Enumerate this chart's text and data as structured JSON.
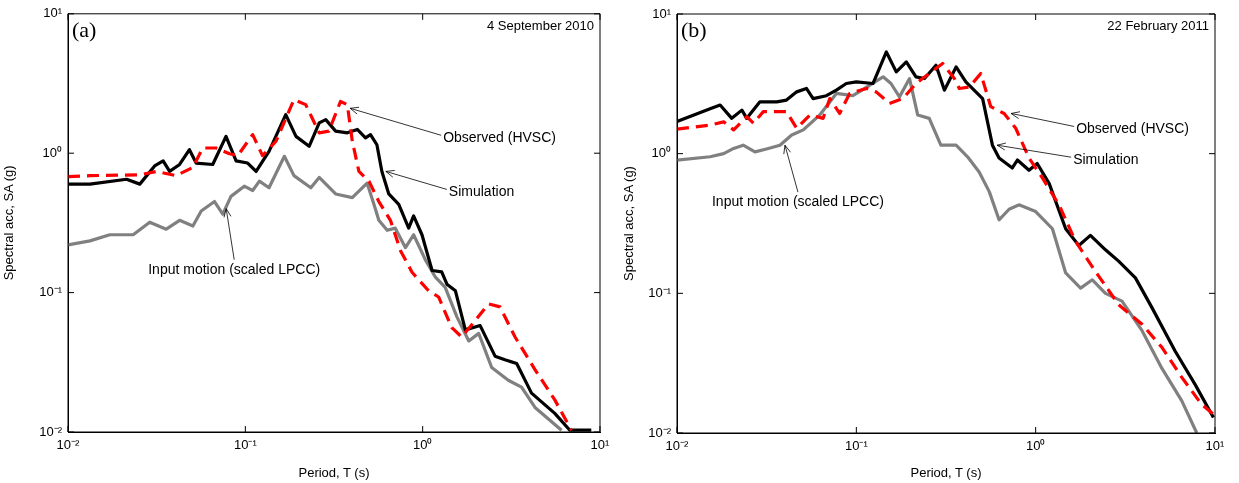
{
  "chart_data": [
    {
      "type": "line",
      "xlabel": "Period, T (s)",
      "ylabel": "Spectral acc, SA (g)",
      "log": "xy",
      "grid": false,
      "legend": false,
      "marker": "none",
      "xlim": [
        0.01,
        10
      ],
      "ylim": [
        0.01,
        10
      ],
      "xticks": [
        {
          "value": 0.01,
          "label": "10⁻²"
        },
        {
          "value": 0.1,
          "label": "10⁻¹"
        },
        {
          "value": 1,
          "label": "10⁰"
        },
        {
          "value": 10,
          "label": "10¹"
        }
      ],
      "yticks": [
        {
          "value": 0.01,
          "label": "10⁻²"
        },
        {
          "value": 0.1,
          "label": "10⁻¹"
        },
        {
          "value": 1,
          "label": "10⁰"
        },
        {
          "value": 10,
          "label": "10¹"
        }
      ],
      "annotations": [
        "(a)",
        "4 September 2010",
        {
          "text": "Observed (HVSC)",
          "x": 0.39,
          "y": 2.1
        },
        {
          "text": "Simulation",
          "x": 0.62,
          "y": 0.74
        },
        {
          "text": "Input motion (scaled LPCC)",
          "x": 0.078,
          "y": 0.4
        }
      ],
      "series": [
        {
          "color": "#ff0000",
          "line_style": "dashed",
          "x": [
            0.01,
            0.0133,
            0.0254,
            0.0315,
            0.0407,
            0.0506,
            0.0575,
            0.0684,
            0.0813,
            0.0906,
            0.11,
            0.125,
            0.149,
            0.188,
            0.219,
            0.261,
            0.296,
            0.344,
            0.376,
            0.401,
            0.437,
            0.498,
            0.566,
            0.658,
            0.75,
            0.871,
            1.08,
            1.23,
            1.46,
            1.66,
            1.98,
            2.35,
            2.73,
            3.32,
            4.3,
            5.56,
            6.9
          ],
          "values": [
            0.68,
            0.69,
            0.7,
            0.74,
            0.69,
            0.79,
            1.09,
            1.09,
            0.99,
            0.96,
            1.36,
            0.96,
            1.22,
            2.42,
            2.23,
            1.4,
            1.44,
            2.35,
            2.23,
            1.22,
            0.74,
            0.63,
            0.45,
            0.33,
            0.2,
            0.14,
            0.103,
            0.093,
            0.056,
            0.048,
            0.063,
            0.083,
            0.079,
            0.048,
            0.028,
            0.017,
            0.0103
          ]
        },
        {
          "color": "#000000",
          "line_style": "solid",
          "x": [
            0.01,
            0.0133,
            0.0214,
            0.0254,
            0.0308,
            0.0344,
            0.0374,
            0.0426,
            0.0484,
            0.0528,
            0.0655,
            0.0778,
            0.0887,
            0.103,
            0.115,
            0.136,
            0.169,
            0.193,
            0.229,
            0.261,
            0.284,
            0.323,
            0.376,
            0.428,
            0.476,
            0.508,
            0.552,
            0.589,
            0.644,
            0.733,
            0.834,
            0.889,
            0.991,
            1.13,
            1.28,
            1.37,
            1.53,
            1.74,
            2.11,
            2.56,
            2.91,
            3.39,
            4.11,
            5.56,
            6.76,
            8.93
          ],
          "values": [
            0.6,
            0.6,
            0.65,
            0.6,
            0.81,
            0.88,
            0.74,
            0.83,
            1.06,
            0.85,
            0.83,
            1.32,
            0.88,
            0.85,
            0.74,
            1.03,
            1.89,
            1.32,
            1.12,
            1.65,
            1.74,
            1.44,
            1.4,
            1.48,
            1.29,
            1.36,
            1.15,
            0.74,
            0.51,
            0.43,
            0.29,
            0.355,
            0.26,
            0.144,
            0.141,
            0.115,
            0.103,
            0.054,
            0.058,
            0.035,
            0.033,
            0.031,
            0.019,
            0.0136,
            0.0103,
            0.0103
          ]
        },
        {
          "color": "#808080",
          "line_style": "solid",
          "x": [
            0.01,
            0.0133,
            0.0172,
            0.0233,
            0.0289,
            0.0358,
            0.0426,
            0.0506,
            0.0564,
            0.067,
            0.0746,
            0.083,
            0.0986,
            0.11,
            0.12,
            0.136,
            0.166,
            0.188,
            0.234,
            0.261,
            0.323,
            0.401,
            0.486,
            0.531,
            0.566,
            0.631,
            0.701,
            0.8,
            0.889,
            1.04,
            1.18,
            1.34,
            1.56,
            1.82,
            2.07,
            2.45,
            3.04,
            3.61,
            4.3,
            6.07
          ],
          "values": [
            0.22,
            0.235,
            0.26,
            0.26,
            0.32,
            0.285,
            0.33,
            0.3,
            0.385,
            0.45,
            0.365,
            0.49,
            0.58,
            0.54,
            0.63,
            0.565,
            0.95,
            0.69,
            0.565,
            0.67,
            0.51,
            0.48,
            0.61,
            0.43,
            0.33,
            0.28,
            0.29,
            0.21,
            0.26,
            0.17,
            0.129,
            0.109,
            0.067,
            0.045,
            0.051,
            0.029,
            0.0235,
            0.021,
            0.015,
            0.0103
          ]
        }
      ]
    },
    {
      "type": "line",
      "xlabel": "Period, T (s)",
      "ylabel": "Spectral acc, SA (g)",
      "log": "xy",
      "grid": false,
      "legend": false,
      "marker": "none",
      "xlim": [
        0.01,
        10
      ],
      "ylim": [
        0.01,
        10
      ],
      "xticks": [
        {
          "value": 0.01,
          "label": "10⁻²"
        },
        {
          "value": 0.1,
          "label": "10⁻¹"
        },
        {
          "value": 1,
          "label": "10⁰"
        },
        {
          "value": 10,
          "label": "10¹"
        }
      ],
      "yticks": [
        {
          "value": 0.01,
          "label": "10⁻²"
        },
        {
          "value": 0.1,
          "label": "10⁻¹"
        },
        {
          "value": 1,
          "label": "10⁰"
        },
        {
          "value": 10,
          "label": "10¹"
        }
      ],
      "annotations": [
        "(b)",
        "22 February 2011",
        {
          "text": "Observed (HVSC)",
          "x": 0.73,
          "y": 1.94
        },
        {
          "text": "Simulation",
          "x": 0.61,
          "y": 1.15
        },
        {
          "text": "Input motion (scaled LPCC)",
          "x": 0.04,
          "y": 1.15
        }
      ],
      "series": [
        {
          "color": "#ff0000",
          "line_style": "dashed",
          "x": [
            0.01,
            0.0153,
            0.0182,
            0.0207,
            0.0245,
            0.0267,
            0.0303,
            0.0408,
            0.0465,
            0.0551,
            0.0653,
            0.0711,
            0.0807,
            0.0918,
            0.114,
            0.129,
            0.153,
            0.182,
            0.215,
            0.255,
            0.303,
            0.352,
            0.375,
            0.427,
            0.494,
            0.562,
            0.667,
            0.774,
            0.918,
            1.09,
            1.35,
            1.67,
            2.15,
            2.9,
            3.92,
            5.06,
            6.53,
            8.43,
            9.8
          ],
          "values": [
            1.5,
            1.6,
            1.69,
            1.48,
            1.84,
            1.65,
            2,
            2,
            1.52,
            1.89,
            1.79,
            2.48,
            1.94,
            2.7,
            2.93,
            2.77,
            2.29,
            2.48,
            3.18,
            3.75,
            4.42,
            3.45,
            2.93,
            3,
            3.75,
            2.17,
            1.94,
            1.52,
            0.93,
            0.67,
            0.43,
            0.235,
            0.144,
            0.083,
            0.06,
            0.041,
            0.025,
            0.016,
            0.0136
          ]
        },
        {
          "color": "#000000",
          "line_style": "solid",
          "x": [
            0.01,
            0.0153,
            0.0174,
            0.0202,
            0.023,
            0.0245,
            0.029,
            0.036,
            0.0408,
            0.0465,
            0.0527,
            0.0574,
            0.0681,
            0.0774,
            0.0879,
            0.1,
            0.124,
            0.147,
            0.167,
            0.19,
            0.215,
            0.24,
            0.278,
            0.31,
            0.36,
            0.408,
            0.506,
            0.574,
            0.625,
            0.741,
            0.791,
            0.918,
            1.02,
            1.19,
            1.47,
            1.74,
            2.02,
            2.45,
            2.9,
            3.6,
            4.45,
            6,
            7.74,
            9.8
          ],
          "values": [
            1.7,
            2.1,
            2.23,
            1.79,
            2.05,
            1.79,
            2.35,
            2.35,
            2.42,
            2.77,
            2.93,
            2.48,
            2.6,
            2.85,
            3.18,
            3.27,
            3.18,
            5.35,
            3.85,
            4.54,
            3.55,
            3.45,
            4.3,
            2.85,
            4.18,
            3.27,
            2.48,
            1.15,
            0.93,
            0.79,
            0.9,
            0.76,
            0.85,
            0.61,
            0.29,
            0.22,
            0.26,
            0.205,
            0.17,
            0.129,
            0.079,
            0.0385,
            0.0223,
            0.0129
          ]
        },
        {
          "color": "#808080",
          "line_style": "solid",
          "x": [
            0.01,
            0.0153,
            0.0182,
            0.0207,
            0.0234,
            0.0272,
            0.0323,
            0.0375,
            0.0436,
            0.0506,
            0.0625,
            0.0774,
            0.0957,
            0.119,
            0.141,
            0.156,
            0.174,
            0.198,
            0.22,
            0.255,
            0.296,
            0.36,
            0.417,
            0.484,
            0.551,
            0.625,
            0.711,
            0.807,
            1,
            1.24,
            1.47,
            1.78,
            2.07,
            2.45,
            3.03,
            3.92,
            5.06,
            6.53,
            7.91
          ],
          "values": [
            0.9,
            0.95,
            1,
            1.09,
            1.15,
            1.03,
            1.09,
            1.15,
            1.36,
            1.48,
            1.89,
            2.7,
            2.6,
            3.1,
            3.55,
            3.18,
            2.55,
            3.45,
            1.89,
            1.79,
            1.15,
            1.15,
            0.95,
            0.74,
            0.535,
            0.336,
            0.4,
            0.43,
            0.385,
            0.29,
            0.14,
            0.109,
            0.125,
            0.1,
            0.088,
            0.054,
            0.029,
            0.017,
            0.01
          ]
        }
      ]
    }
  ]
}
